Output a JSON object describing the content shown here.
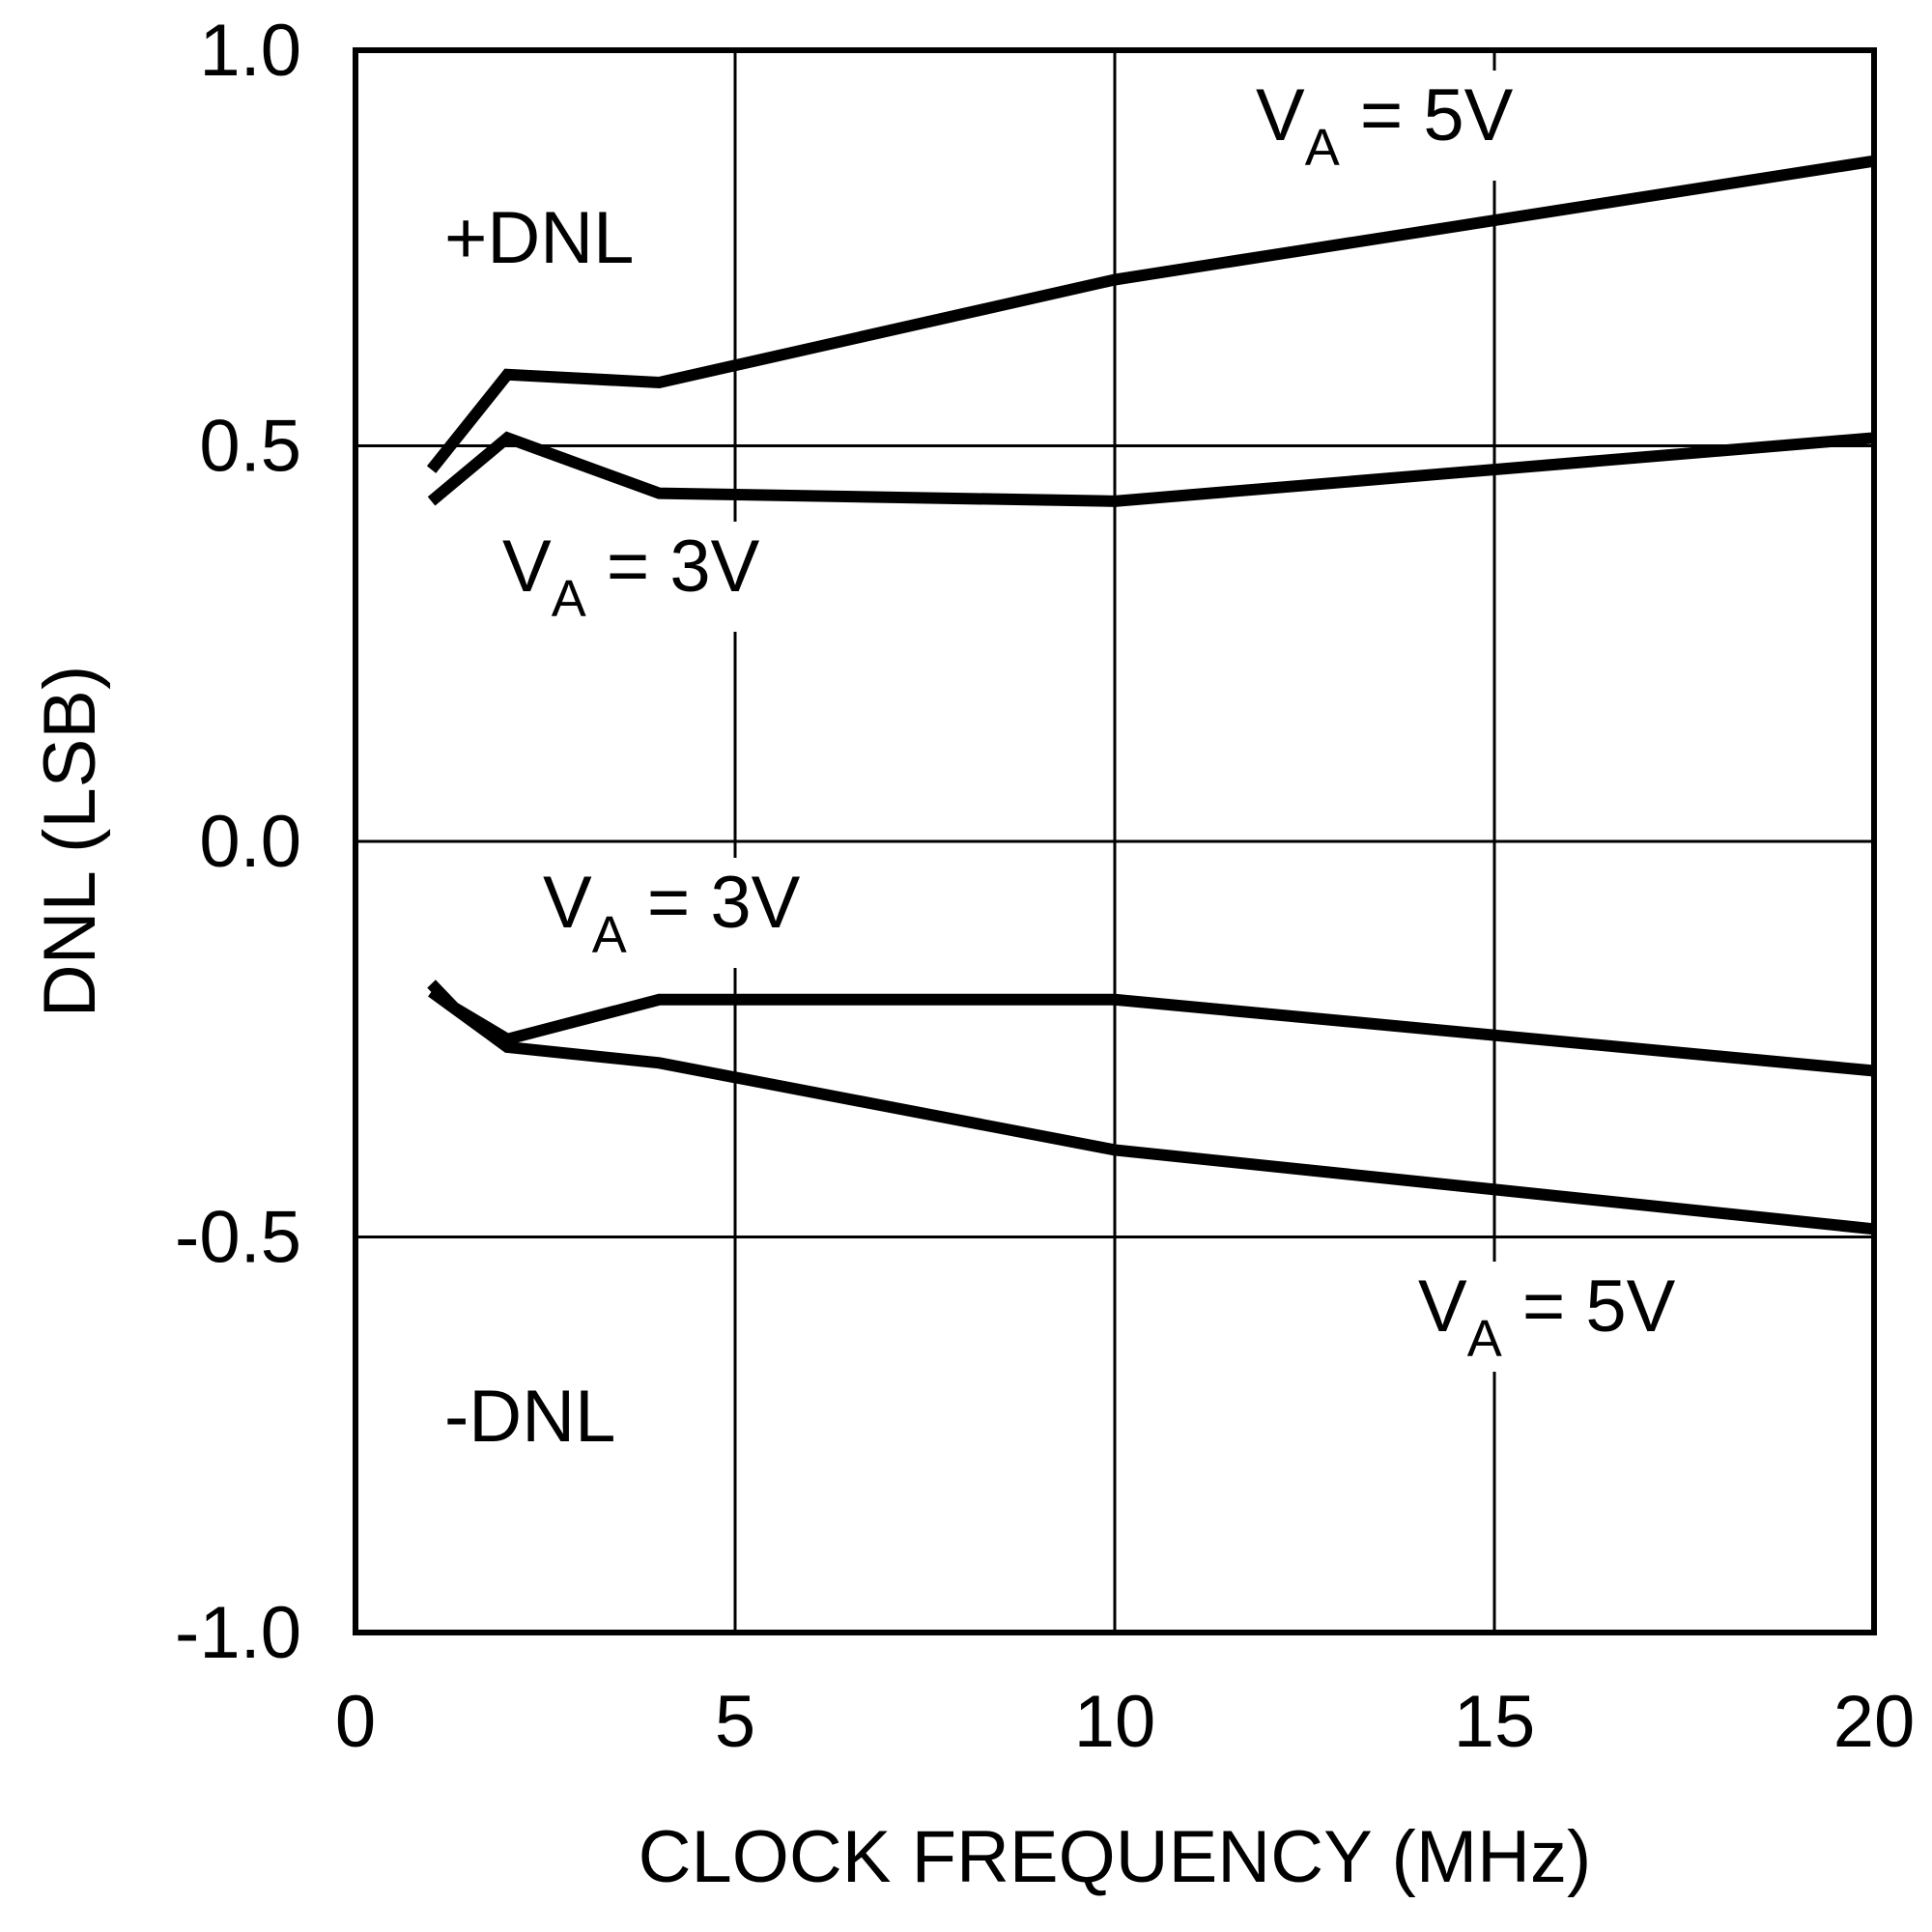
{
  "chart_data": {
    "type": "line",
    "title": "",
    "xlabel": "CLOCK FREQUENCY (MHz)",
    "ylabel": "DNL (LSB)",
    "xlim": [
      0,
      20
    ],
    "ylim": [
      -1.0,
      1.0
    ],
    "xticks": [
      0,
      5,
      10,
      15,
      20
    ],
    "xtick_labels": [
      "0",
      "5",
      "10",
      "15",
      "20"
    ],
    "yticks": [
      1.0,
      0.5,
      0.0,
      -0.5,
      -1.0
    ],
    "ytick_labels": [
      "1.0",
      "0.5",
      "0.0",
      "-0.5",
      "-1.0"
    ],
    "grid": true,
    "series": [
      {
        "name": "+DNL, VA = 5V",
        "x": [
          1,
          2,
          4,
          10,
          20
        ],
        "y": [
          0.47,
          0.59,
          0.58,
          0.71,
          0.86
        ]
      },
      {
        "name": "+DNL, VA = 3V",
        "x": [
          1,
          2,
          4,
          10,
          20
        ],
        "y": [
          0.43,
          0.51,
          0.44,
          0.43,
          0.51
        ]
      },
      {
        "name": "-DNL, VA = 3V",
        "x": [
          1,
          1.3,
          2,
          4,
          10,
          20
        ],
        "y": [
          -0.18,
          -0.21,
          -0.25,
          -0.2,
          -0.2,
          -0.29
        ]
      },
      {
        "name": "-DNL, VA = 5V",
        "x": [
          1,
          2,
          4,
          10,
          20
        ],
        "y": [
          -0.19,
          -0.26,
          -0.28,
          -0.39,
          -0.49
        ]
      }
    ],
    "annotations": [
      {
        "id": "pos-dnl",
        "text": "+DNL"
      },
      {
        "id": "neg-dnl",
        "text": "-DNL"
      },
      {
        "id": "va5-top",
        "main": "V",
        "sub": "A",
        "rest": " = 5V"
      },
      {
        "id": "va3-top",
        "main": "V",
        "sub": "A",
        "rest": " = 3V"
      },
      {
        "id": "va3-bottom",
        "main": "V",
        "sub": "A",
        "rest": " = 3V"
      },
      {
        "id": "va5-bottom",
        "main": "V",
        "sub": "A",
        "rest": " = 5V"
      }
    ]
  }
}
